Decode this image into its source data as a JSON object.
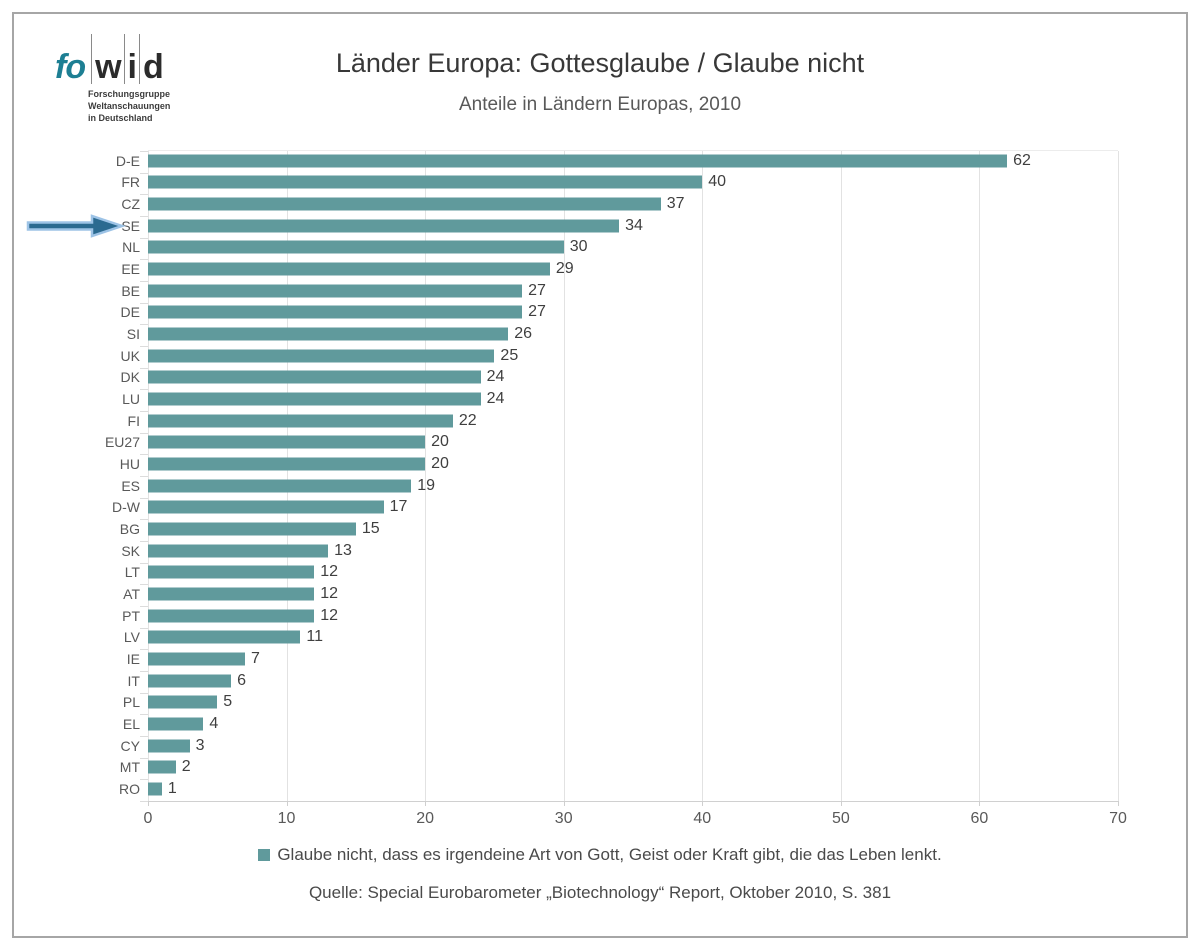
{
  "logo": {
    "fo": "fo",
    "w": "w",
    "i": "i",
    "d": "d",
    "line1": "Forschungsgruppe",
    "line2": "Weltanschauungen",
    "line3": "in Deutschland"
  },
  "header": {
    "title": "Länder Europa: Gottesglaube / Glaube nicht",
    "subtitle": "Anteile in Ländern Europas, 2010"
  },
  "chart_data": {
    "type": "bar",
    "orientation": "horizontal",
    "title": "Länder Europa: Gottesglaube / Glaube nicht",
    "subtitle": "Anteile in Ländern Europas, 2010",
    "categories": [
      "D-E",
      "FR",
      "CZ",
      "SE",
      "NL",
      "EE",
      "BE",
      "DE",
      "SI",
      "UK",
      "DK",
      "LU",
      "FI",
      "EU27",
      "HU",
      "ES",
      "D-W",
      "BG",
      "SK",
      "LT",
      "AT",
      "PT",
      "LV",
      "IE",
      "IT",
      "PL",
      "EL",
      "CY",
      "MT",
      "RO"
    ],
    "values": [
      62,
      40,
      37,
      34,
      30,
      29,
      27,
      27,
      26,
      25,
      24,
      24,
      22,
      20,
      20,
      19,
      17,
      15,
      13,
      12,
      12,
      12,
      11,
      7,
      6,
      5,
      4,
      3,
      2,
      1
    ],
    "xlim": [
      0,
      70
    ],
    "xticks": [
      0,
      10,
      20,
      30,
      40,
      50,
      60,
      70
    ],
    "grid": "vertical",
    "bar_color": "#609a9c",
    "legend": "Glaube nicht, dass es irgendeine Art von Gott, Geist oder Kraft gibt, die das Leben lenkt.",
    "legend_position": "bottom",
    "annotation": {
      "type": "arrow",
      "target_category": "SE",
      "fill_color": "#2b6a90",
      "outline_color": "#9dc3e6"
    }
  },
  "footer": {
    "source": "Quelle: Special Eurobarometer „Biotechnology“ Report, Oktober 2010, S. 381"
  }
}
